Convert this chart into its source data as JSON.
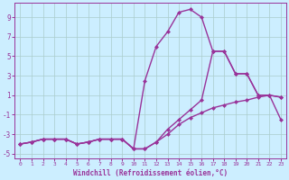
{
  "xlabel": "Windchill (Refroidissement éolien,°C)",
  "bg_color": "#cceeff",
  "grid_color": "#aacccc",
  "line_color": "#993399",
  "xlim": [
    -0.5,
    23.5
  ],
  "ylim": [
    -5.5,
    10.5
  ],
  "xticks": [
    0,
    1,
    2,
    3,
    4,
    5,
    6,
    7,
    8,
    9,
    10,
    11,
    12,
    13,
    14,
    15,
    16,
    17,
    18,
    19,
    20,
    21,
    22,
    23
  ],
  "yticks": [
    -5,
    -3,
    -1,
    1,
    3,
    5,
    7,
    9
  ],
  "curve1_x": [
    0,
    1,
    2,
    3,
    4,
    5,
    6,
    7,
    8,
    9,
    10,
    11,
    12,
    13,
    14,
    15,
    16,
    17,
    18,
    19,
    20,
    21,
    22,
    23
  ],
  "curve1_y": [
    -4.0,
    -3.8,
    -3.5,
    -3.5,
    -3.5,
    -4.0,
    -3.8,
    -3.5,
    -3.5,
    -3.5,
    -4.5,
    -4.5,
    -3.8,
    -3.0,
    -2.0,
    -1.3,
    -0.8,
    -0.3,
    0.0,
    0.3,
    0.5,
    0.8,
    1.0,
    -1.5
  ],
  "curve2_x": [
    0,
    1,
    2,
    3,
    4,
    5,
    6,
    7,
    8,
    9,
    10,
    11,
    12,
    13,
    14,
    15,
    16,
    17,
    18,
    19,
    20,
    21,
    22,
    23
  ],
  "curve2_y": [
    -4.0,
    -3.8,
    -3.5,
    -3.5,
    -3.5,
    -4.0,
    -3.8,
    -3.5,
    -3.5,
    -3.5,
    -4.5,
    2.5,
    6.0,
    7.5,
    9.5,
    9.8,
    9.0,
    5.5,
    5.5,
    3.2,
    3.2,
    1.0,
    1.0,
    0.8
  ],
  "curve3_x": [
    0,
    1,
    2,
    3,
    4,
    5,
    6,
    7,
    8,
    9,
    10,
    11,
    12,
    13,
    14,
    15,
    16,
    17,
    18,
    19,
    20,
    21,
    22,
    23
  ],
  "curve3_y": [
    -4.0,
    -3.8,
    -3.5,
    -3.5,
    -3.5,
    -4.0,
    -3.8,
    -3.5,
    -3.5,
    -3.5,
    -4.5,
    -4.5,
    -3.8,
    -2.5,
    -1.5,
    -0.5,
    0.5,
    5.5,
    5.5,
    3.2,
    3.2,
    1.0,
    1.0,
    0.8
  ],
  "marker": "D",
  "markersize": 2.5,
  "linewidth": 1.0
}
